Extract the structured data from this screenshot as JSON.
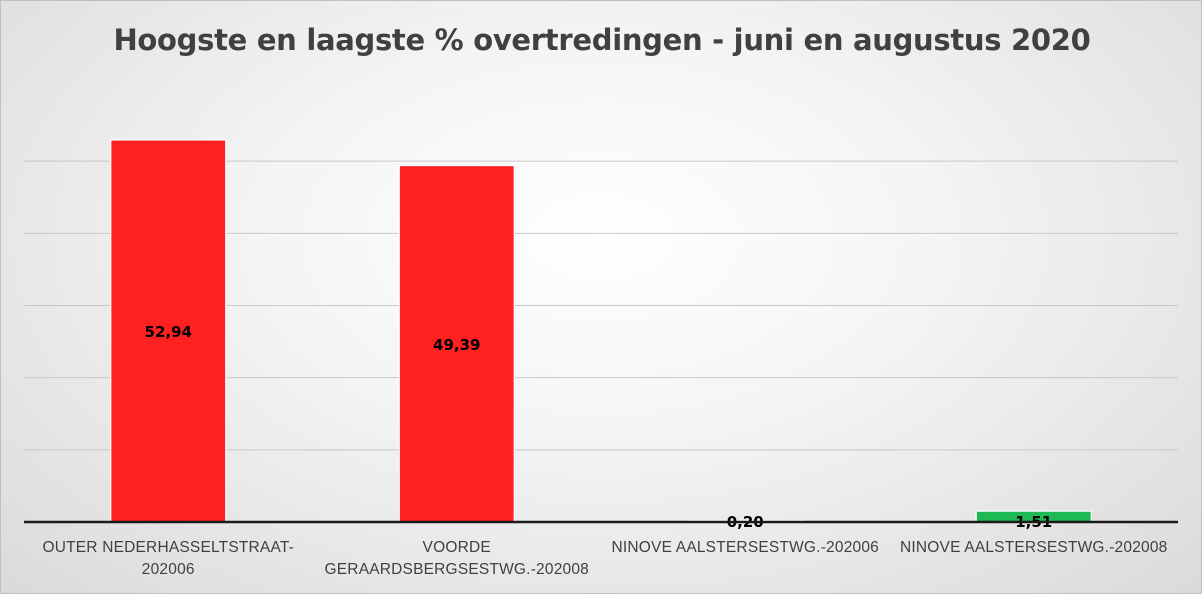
{
  "chart_data": {
    "type": "bar",
    "title": "Hoogste en laagste % overtredingen - juni en augustus 2020",
    "categories": [
      "OUTER NEDERHASSELTSTRAAT-202006",
      "VOORDE GERAARDSBERGSESTWG.-202008",
      "NINOVE AALSTERSESTWG.-202006",
      "NINOVE AALSTERSESTWG.-202008"
    ],
    "values": [
      52.94,
      49.39,
      0.2,
      1.51
    ],
    "data_labels": [
      "52,94",
      "49,39",
      "0,20",
      "1,51"
    ],
    "bar_colors": [
      "#ff2020",
      "#ff2020",
      "#ff2020",
      "#1db954"
    ],
    "ylim": [
      0,
      60
    ],
    "gridline_step": 10,
    "grid": true,
    "tick_labels_shown": false,
    "legend": "none"
  }
}
